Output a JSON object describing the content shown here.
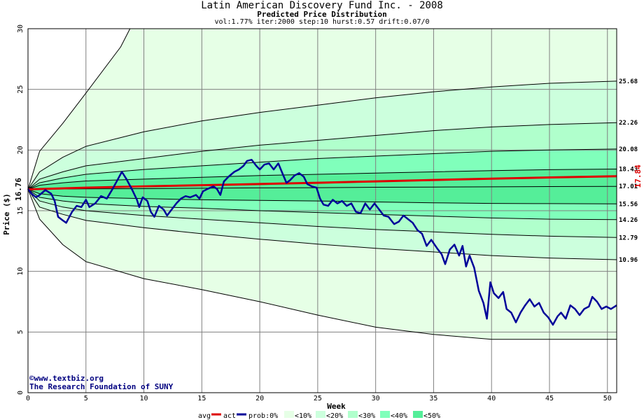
{
  "chart_data": {
    "type": "line",
    "title": "Latin American Discovery Fund Inc. - 2008",
    "subtitle": "Predicted Price Distribution",
    "params": "vol:1.77% iter:2000 step:10 hurst:0.57 drift:0.07/0",
    "xlabel": "Week",
    "ylabel": "Price ($)",
    "xlim": [
      0,
      50.8
    ],
    "ylim": [
      0,
      30
    ],
    "x_ticks": [
      0,
      5,
      10,
      15,
      20,
      25,
      30,
      35,
      40,
      45,
      50
    ],
    "y_ticks": [
      0,
      5,
      10,
      15,
      20,
      25,
      30
    ],
    "grid": true,
    "start_price_label": "16.76",
    "end_avg_label": "17.84",
    "colors": {
      "band_10": "#e6ffe6",
      "band_20": "#ccffdd",
      "band_30": "#b0ffcc",
      "band_40": "#80ffbb",
      "band_50": "#55ee99",
      "avg": "#dd0000",
      "actual": "#000099",
      "grid": "#808080"
    },
    "percentile_lines": [
      {
        "label": "",
        "values": [
          [
            0,
            16.76
          ],
          [
            1,
            19.9
          ],
          [
            3,
            22.2
          ],
          [
            5,
            24.7
          ],
          [
            8,
            28.5
          ],
          [
            8.8,
            30
          ]
        ]
      },
      {
        "label": "25.68",
        "values": [
          [
            0,
            16.76
          ],
          [
            1,
            18.2
          ],
          [
            3,
            19.4
          ],
          [
            5,
            20.3
          ],
          [
            10,
            21.5
          ],
          [
            15,
            22.4
          ],
          [
            20,
            23.1
          ],
          [
            25,
            23.7
          ],
          [
            30,
            24.3
          ],
          [
            35,
            24.8
          ],
          [
            40,
            25.2
          ],
          [
            45,
            25.5
          ],
          [
            50.8,
            25.68
          ]
        ]
      },
      {
        "label": "22.26",
        "values": [
          [
            0,
            16.76
          ],
          [
            1,
            17.6
          ],
          [
            3,
            18.2
          ],
          [
            5,
            18.7
          ],
          [
            10,
            19.3
          ],
          [
            15,
            19.9
          ],
          [
            20,
            20.4
          ],
          [
            25,
            20.8
          ],
          [
            30,
            21.2
          ],
          [
            35,
            21.6
          ],
          [
            40,
            21.9
          ],
          [
            45,
            22.1
          ],
          [
            50.8,
            22.26
          ]
        ]
      },
      {
        "label": "20.08",
        "values": [
          [
            0,
            16.76
          ],
          [
            1,
            17.3
          ],
          [
            3,
            17.7
          ],
          [
            5,
            18.0
          ],
          [
            10,
            18.4
          ],
          [
            15,
            18.7
          ],
          [
            20,
            19.0
          ],
          [
            25,
            19.3
          ],
          [
            30,
            19.5
          ],
          [
            35,
            19.7
          ],
          [
            40,
            19.9
          ],
          [
            45,
            20.0
          ],
          [
            50.8,
            20.08
          ]
        ]
      },
      {
        "label": "18.43",
        "values": [
          [
            0,
            16.76
          ],
          [
            1,
            17.1
          ],
          [
            3,
            17.3
          ],
          [
            5,
            17.45
          ],
          [
            10,
            17.6
          ],
          [
            15,
            17.75
          ],
          [
            20,
            17.9
          ],
          [
            25,
            18.0
          ],
          [
            30,
            18.1
          ],
          [
            35,
            18.2
          ],
          [
            40,
            18.3
          ],
          [
            45,
            18.38
          ],
          [
            50.8,
            18.43
          ]
        ]
      },
      {
        "label": "17.01",
        "values": [
          [
            0,
            16.76
          ],
          [
            5,
            16.8
          ],
          [
            10,
            16.82
          ],
          [
            15,
            16.85
          ],
          [
            20,
            16.88
          ],
          [
            25,
            16.9
          ],
          [
            30,
            16.93
          ],
          [
            35,
            16.95
          ],
          [
            40,
            16.97
          ],
          [
            45,
            16.99
          ],
          [
            50.8,
            17.01
          ]
        ]
      },
      {
        "label": "15.56",
        "values": [
          [
            0,
            16.76
          ],
          [
            1,
            16.4
          ],
          [
            3,
            16.2
          ],
          [
            5,
            16.1
          ],
          [
            10,
            16.0
          ],
          [
            15,
            15.9
          ],
          [
            20,
            15.85
          ],
          [
            25,
            15.8
          ],
          [
            30,
            15.72
          ],
          [
            35,
            15.65
          ],
          [
            40,
            15.6
          ],
          [
            45,
            15.58
          ],
          [
            50.8,
            15.56
          ]
        ]
      },
      {
        "label": "14.26",
        "values": [
          [
            0,
            16.76
          ],
          [
            1,
            16.1
          ],
          [
            3,
            15.8
          ],
          [
            5,
            15.6
          ],
          [
            10,
            15.35
          ],
          [
            15,
            15.2
          ],
          [
            20,
            15.0
          ],
          [
            25,
            14.85
          ],
          [
            30,
            14.7
          ],
          [
            35,
            14.55
          ],
          [
            40,
            14.4
          ],
          [
            45,
            14.3
          ],
          [
            50.8,
            14.26
          ]
        ]
      },
      {
        "label": "12.79",
        "values": [
          [
            0,
            16.76
          ],
          [
            1,
            15.8
          ],
          [
            3,
            15.3
          ],
          [
            5,
            15.0
          ],
          [
            10,
            14.6
          ],
          [
            15,
            14.3
          ],
          [
            20,
            14.0
          ],
          [
            25,
            13.7
          ],
          [
            30,
            13.45
          ],
          [
            35,
            13.25
          ],
          [
            40,
            13.05
          ],
          [
            45,
            12.9
          ],
          [
            50.8,
            12.79
          ]
        ]
      },
      {
        "label": "10.96",
        "values": [
          [
            0,
            16.76
          ],
          [
            1,
            15.3
          ],
          [
            3,
            14.7
          ],
          [
            5,
            14.2
          ],
          [
            10,
            13.6
          ],
          [
            15,
            13.1
          ],
          [
            20,
            12.65
          ],
          [
            25,
            12.25
          ],
          [
            30,
            11.9
          ],
          [
            35,
            11.6
          ],
          [
            40,
            11.3
          ],
          [
            45,
            11.1
          ],
          [
            50.8,
            10.96
          ]
        ]
      },
      {
        "label": "",
        "values": [
          [
            0,
            16.76
          ],
          [
            1,
            14.3
          ],
          [
            3,
            12.2
          ],
          [
            5,
            10.8
          ],
          [
            10,
            9.4
          ],
          [
            15,
            8.5
          ],
          [
            20,
            7.5
          ],
          [
            25,
            6.4
          ],
          [
            30,
            5.4
          ],
          [
            35,
            4.8
          ],
          [
            40,
            4.4
          ],
          [
            45,
            4.4
          ],
          [
            50.8,
            4.4
          ]
        ]
      }
    ],
    "series": [
      {
        "name": "avg",
        "values": [
          [
            0,
            16.76
          ],
          [
            5,
            16.9
          ],
          [
            10,
            17.0
          ],
          [
            15,
            17.1
          ],
          [
            20,
            17.2
          ],
          [
            25,
            17.3
          ],
          [
            30,
            17.42
          ],
          [
            35,
            17.53
          ],
          [
            40,
            17.64
          ],
          [
            45,
            17.74
          ],
          [
            50.8,
            17.84
          ]
        ]
      },
      {
        "name": "act",
        "values": [
          [
            0,
            16.8
          ],
          [
            0.3,
            16.4
          ],
          [
            0.7,
            16.1
          ],
          [
            1,
            16.3
          ],
          [
            1.5,
            16.7
          ],
          [
            2,
            16.4
          ],
          [
            2.3,
            15.8
          ],
          [
            2.6,
            14.5
          ],
          [
            3,
            14.2
          ],
          [
            3.3,
            14.0
          ],
          [
            3.8,
            14.9
          ],
          [
            4.2,
            15.4
          ],
          [
            4.6,
            15.3
          ],
          [
            5,
            15.9
          ],
          [
            5.3,
            15.3
          ],
          [
            5.8,
            15.6
          ],
          [
            6.3,
            16.2
          ],
          [
            6.8,
            16.0
          ],
          [
            7.3,
            16.8
          ],
          [
            7.7,
            17.5
          ],
          [
            8.1,
            18.2
          ],
          [
            8.5,
            17.6
          ],
          [
            9,
            16.7
          ],
          [
            9.4,
            15.9
          ],
          [
            9.6,
            15.3
          ],
          [
            9.9,
            16.1
          ],
          [
            10.3,
            15.8
          ],
          [
            10.6,
            14.9
          ],
          [
            10.9,
            14.5
          ],
          [
            11.3,
            15.4
          ],
          [
            11.7,
            15.1
          ],
          [
            12,
            14.6
          ],
          [
            12.4,
            15.1
          ],
          [
            12.8,
            15.6
          ],
          [
            13.2,
            16.0
          ],
          [
            13.6,
            16.2
          ],
          [
            14,
            16.1
          ],
          [
            14.5,
            16.3
          ],
          [
            14.8,
            16.0
          ],
          [
            15.1,
            16.6
          ],
          [
            15.5,
            16.8
          ],
          [
            16,
            17.0
          ],
          [
            16.3,
            16.8
          ],
          [
            16.6,
            16.3
          ],
          [
            16.9,
            17.4
          ],
          [
            17.3,
            17.8
          ],
          [
            17.8,
            18.2
          ],
          [
            18.2,
            18.4
          ],
          [
            18.6,
            18.7
          ],
          [
            18.9,
            19.1
          ],
          [
            19.3,
            19.2
          ],
          [
            19.7,
            18.7
          ],
          [
            20,
            18.4
          ],
          [
            20.4,
            18.8
          ],
          [
            20.8,
            18.9
          ],
          [
            21.2,
            18.4
          ],
          [
            21.6,
            18.9
          ],
          [
            21.9,
            18.2
          ],
          [
            22.3,
            17.3
          ],
          [
            22.6,
            17.5
          ],
          [
            23,
            17.9
          ],
          [
            23.4,
            18.1
          ],
          [
            23.8,
            17.8
          ],
          [
            24.1,
            17.2
          ],
          [
            24.5,
            17.0
          ],
          [
            24.9,
            16.9
          ],
          [
            25.2,
            16.0
          ],
          [
            25.5,
            15.5
          ],
          [
            25.9,
            15.4
          ],
          [
            26.3,
            15.9
          ],
          [
            26.7,
            15.6
          ],
          [
            27.1,
            15.8
          ],
          [
            27.5,
            15.4
          ],
          [
            27.9,
            15.6
          ],
          [
            28.3,
            14.9
          ],
          [
            28.7,
            14.8
          ],
          [
            29.1,
            15.6
          ],
          [
            29.5,
            15.1
          ],
          [
            29.9,
            15.6
          ],
          [
            30.3,
            15.1
          ],
          [
            30.7,
            14.6
          ],
          [
            31.1,
            14.5
          ],
          [
            31.6,
            13.9
          ],
          [
            32,
            14.1
          ],
          [
            32.4,
            14.6
          ],
          [
            32.8,
            14.3
          ],
          [
            33.2,
            14.0
          ],
          [
            33.6,
            13.4
          ],
          [
            34,
            13.1
          ],
          [
            34.4,
            12.1
          ],
          [
            34.8,
            12.6
          ],
          [
            35.3,
            11.9
          ],
          [
            35.7,
            11.4
          ],
          [
            36,
            10.6
          ],
          [
            36.4,
            11.8
          ],
          [
            36.8,
            12.2
          ],
          [
            37.2,
            11.3
          ],
          [
            37.5,
            12.1
          ],
          [
            37.8,
            10.4
          ],
          [
            38.1,
            11.3
          ],
          [
            38.5,
            10.3
          ],
          [
            38.9,
            8.4
          ],
          [
            39.3,
            7.4
          ],
          [
            39.6,
            6.1
          ],
          [
            39.9,
            9.1
          ],
          [
            40.2,
            8.2
          ],
          [
            40.6,
            7.8
          ],
          [
            41,
            8.3
          ],
          [
            41.3,
            6.9
          ],
          [
            41.7,
            6.6
          ],
          [
            42.1,
            5.8
          ],
          [
            42.5,
            6.6
          ],
          [
            42.9,
            7.2
          ],
          [
            43.3,
            7.7
          ],
          [
            43.7,
            7.1
          ],
          [
            44.1,
            7.4
          ],
          [
            44.5,
            6.6
          ],
          [
            44.9,
            6.2
          ],
          [
            45.3,
            5.6
          ],
          [
            45.7,
            6.3
          ],
          [
            46,
            6.6
          ],
          [
            46.4,
            6.1
          ],
          [
            46.8,
            7.2
          ],
          [
            47.2,
            6.9
          ],
          [
            47.6,
            6.4
          ],
          [
            48,
            6.9
          ],
          [
            48.4,
            7.1
          ],
          [
            48.7,
            7.9
          ],
          [
            49.1,
            7.5
          ],
          [
            49.5,
            6.9
          ],
          [
            49.9,
            7.1
          ],
          [
            50.3,
            6.9
          ],
          [
            50.8,
            7.2
          ]
        ]
      }
    ],
    "legend": {
      "avg": "avg",
      "act": "act",
      "prob": "prob:0%",
      "bands": [
        "<10%",
        "<20%",
        "<30%",
        "<40%",
        "<50%"
      ]
    }
  },
  "credits": {
    "line1": "©www.textbiz.org",
    "line2": "The Research Foundation of SUNY"
  }
}
